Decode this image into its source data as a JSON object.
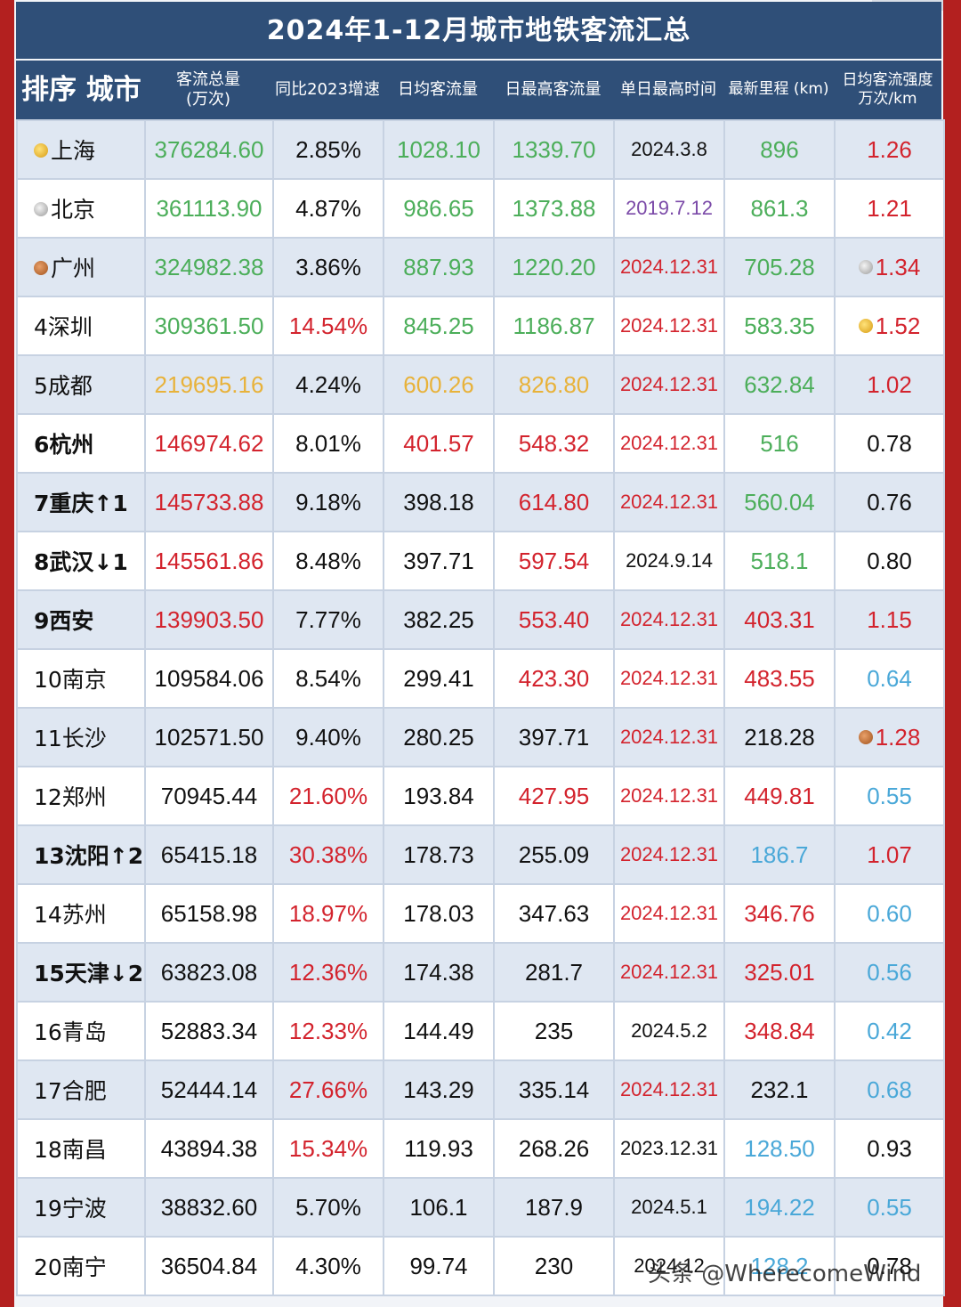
{
  "title": "2024年1-12月城市地铁客流汇总",
  "headers": {
    "rank_city": "排序 城市",
    "total_l1": "客流总量",
    "total_l2": "(万次)",
    "growth": "同比2023增速",
    "daily_avg": "日均客流量",
    "daily_max": "日最高客流量",
    "max_date": "单日最高时间",
    "mileage": "最新里程 (km)",
    "intensity_l1": "日均客流强度",
    "intensity_l2": "万次/km"
  },
  "colors": {
    "header_bg": "#2f4f78",
    "green": "#4cae5a",
    "red": "#d3232d",
    "gold": "#e8b23a",
    "blue": "#4aa8d8",
    "purple": "#7b4aa8"
  },
  "rows": [
    {
      "city": "上海",
      "medal": "gold",
      "total": "376284.60",
      "growth": "2.85%",
      "avg": "1028.10",
      "max": "1339.70",
      "date": "2024.3.8",
      "km": "896",
      "intensity": "1.26",
      "imedal": ""
    },
    {
      "city": "北京",
      "medal": "silver",
      "total": "361113.90",
      "growth": "4.87%",
      "avg": "986.65",
      "max": "1373.88",
      "date": "2019.7.12",
      "km": "861.3",
      "intensity": "1.21",
      "imedal": ""
    },
    {
      "city": "广州",
      "medal": "bronze",
      "total": "324982.38",
      "growth": "3.86%",
      "avg": "887.93",
      "max": "1220.20",
      "date": "2024.12.31",
      "km": "705.28",
      "intensity": "1.34",
      "imedal": "silver"
    },
    {
      "city": "4深圳",
      "medal": "",
      "total": "309361.50",
      "growth": "14.54%",
      "avg": "845.25",
      "max": "1186.87",
      "date": "2024.12.31",
      "km": "583.35",
      "intensity": "1.52",
      "imedal": "gold"
    },
    {
      "city": "5成都",
      "medal": "",
      "total": "219695.16",
      "growth": "4.24%",
      "avg": "600.26",
      "max": "826.80",
      "date": "2024.12.31",
      "km": "632.84",
      "intensity": "1.02",
      "imedal": ""
    },
    {
      "city": "6杭州",
      "medal": "",
      "total": "146974.62",
      "growth": "8.01%",
      "avg": "401.57",
      "max": "548.32",
      "date": "2024.12.31",
      "km": "516",
      "intensity": "0.78",
      "imedal": ""
    },
    {
      "city": "7重庆↑1",
      "medal": "",
      "total": "145733.88",
      "growth": "9.18%",
      "avg": "398.18",
      "max": "614.80",
      "date": "2024.12.31",
      "km": "560.04",
      "intensity": "0.76",
      "imedal": ""
    },
    {
      "city": "8武汉↓1",
      "medal": "",
      "total": "145561.86",
      "growth": "8.48%",
      "avg": "397.71",
      "max": "597.54",
      "date": "2024.9.14",
      "km": "518.1",
      "intensity": "0.80",
      "imedal": ""
    },
    {
      "city": "9西安",
      "medal": "",
      "total": "139903.50",
      "growth": "7.77%",
      "avg": "382.25",
      "max": "553.40",
      "date": "2024.12.31",
      "km": "403.31",
      "intensity": "1.15",
      "imedal": ""
    },
    {
      "city": "10南京",
      "medal": "",
      "total": "109584.06",
      "growth": "8.54%",
      "avg": "299.41",
      "max": "423.30",
      "date": "2024.12.31",
      "km": "483.55",
      "intensity": "0.64",
      "imedal": ""
    },
    {
      "city": "11长沙",
      "medal": "",
      "total": "102571.50",
      "growth": "9.40%",
      "avg": "280.25",
      "max": "397.71",
      "date": "2024.12.31",
      "km": "218.28",
      "intensity": "1.28",
      "imedal": "bronze"
    },
    {
      "city": "12郑州",
      "medal": "",
      "total": "70945.44",
      "growth": "21.60%",
      "avg": "193.84",
      "max": "427.95",
      "date": "2024.12.31",
      "km": "449.81",
      "intensity": "0.55",
      "imedal": ""
    },
    {
      "city": "13沈阳↑2",
      "medal": "",
      "total": "65415.18",
      "growth": "30.38%",
      "avg": "178.73",
      "max": "255.09",
      "date": "2024.12.31",
      "km": "186.7",
      "intensity": "1.07",
      "imedal": ""
    },
    {
      "city": "14苏州",
      "medal": "",
      "total": "65158.98",
      "growth": "18.97%",
      "avg": "178.03",
      "max": "347.63",
      "date": "2024.12.31",
      "km": "346.76",
      "intensity": "0.60",
      "imedal": ""
    },
    {
      "city": "15天津↓2",
      "medal": "",
      "total": "63823.08",
      "growth": "12.36%",
      "avg": "174.38",
      "max": "281.7",
      "date": "2024.12.31",
      "km": "325.01",
      "intensity": "0.56",
      "imedal": ""
    },
    {
      "city": "16青岛",
      "medal": "",
      "total": "52883.34",
      "growth": "12.33%",
      "avg": "144.49",
      "max": "235",
      "date": "2024.5.2",
      "km": "348.84",
      "intensity": "0.42",
      "imedal": ""
    },
    {
      "city": "17合肥",
      "medal": "",
      "total": "52444.14",
      "growth": "27.66%",
      "avg": "143.29",
      "max": "335.14",
      "date": "2024.12.31",
      "km": "232.1",
      "intensity": "0.68",
      "imedal": ""
    },
    {
      "city": "18南昌",
      "medal": "",
      "total": "43894.38",
      "growth": "15.34%",
      "avg": "119.93",
      "max": "268.26",
      "date": "2023.12.31",
      "km": "128.50",
      "intensity": "0.93",
      "imedal": ""
    },
    {
      "city": "19宁波",
      "medal": "",
      "total": "38832.60",
      "growth": "5.70%",
      "avg": "106.1",
      "max": "187.9",
      "date": "2024.5.1",
      "km": "194.22",
      "intensity": "0.55",
      "imedal": ""
    },
    {
      "city": "20南宁",
      "medal": "",
      "total": "36504.84",
      "growth": "4.30%",
      "avg": "99.74",
      "max": "230",
      "date": "2024.12",
      "km": "128.2",
      "intensity": "0.78",
      "imedal": ""
    }
  ],
  "watermark": "头条 @WherecomeWind"
}
